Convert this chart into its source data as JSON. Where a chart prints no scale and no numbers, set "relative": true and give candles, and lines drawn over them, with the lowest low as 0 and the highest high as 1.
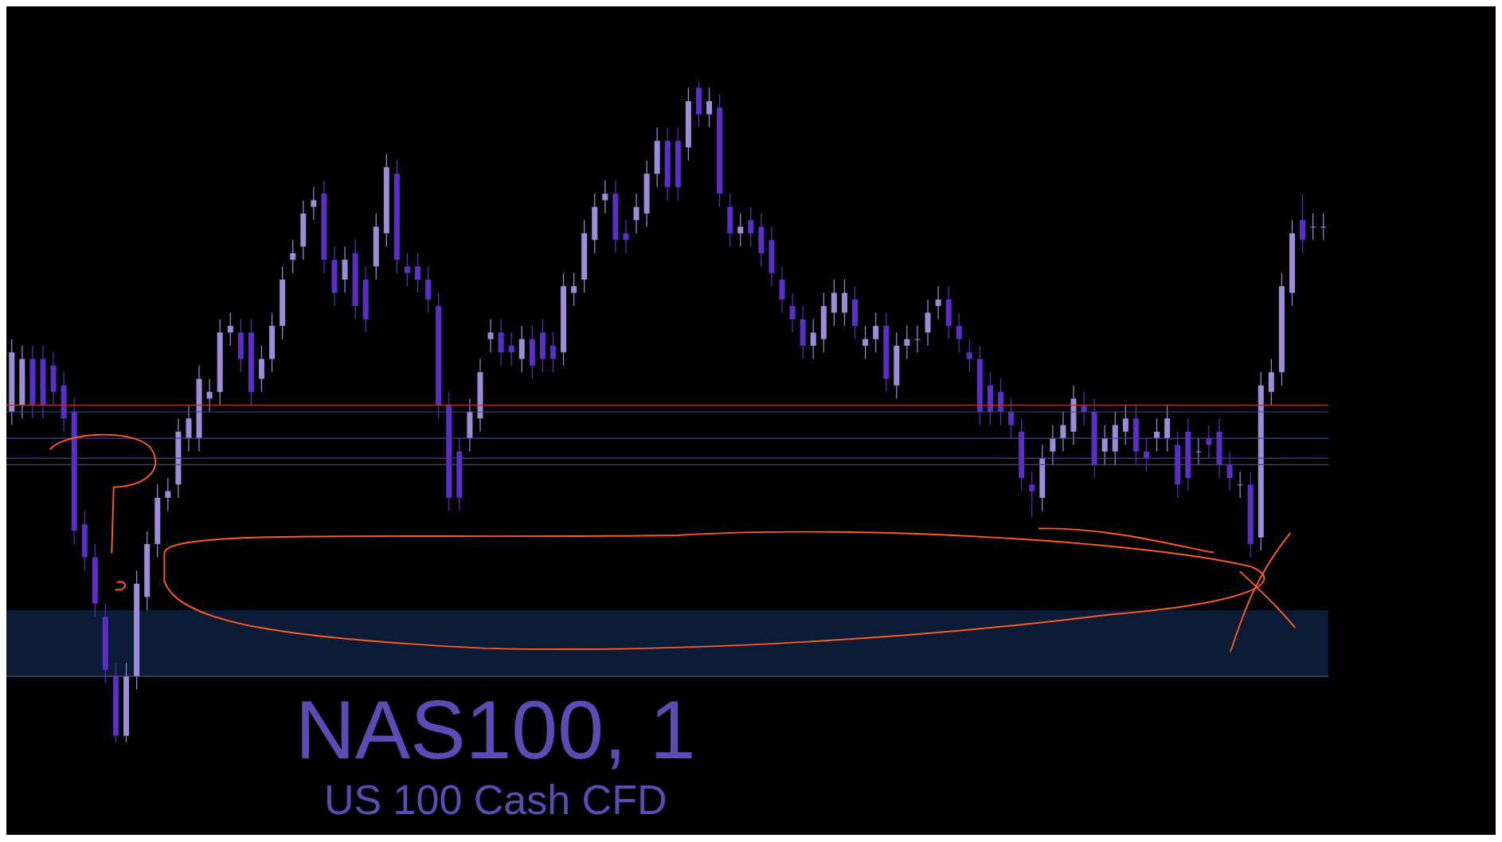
{
  "chart_data": {
    "type": "candlestick",
    "title": "NAS100, 1",
    "subtitle": "US 100 Cash CFD",
    "relative": true,
    "categories": [
      null,
      null,
      null,
      null,
      null,
      null,
      null,
      null,
      null,
      null,
      null,
      null,
      null,
      null,
      null,
      null,
      null,
      null,
      null,
      null,
      null,
      null,
      null,
      null,
      null,
      null,
      null,
      null,
      null,
      null,
      null,
      null,
      null,
      null,
      null,
      null,
      null,
      null,
      null,
      null,
      null,
      null,
      null,
      null,
      null,
      null,
      null,
      null,
      null,
      null,
      null,
      null,
      null,
      null,
      null,
      null,
      null,
      null,
      null,
      null,
      null,
      null,
      null,
      null,
      null,
      null,
      null,
      null,
      null,
      null,
      null,
      null,
      null,
      null,
      null,
      null,
      null,
      null,
      null,
      null,
      null,
      null,
      null,
      null,
      null,
      null,
      null,
      null,
      null,
      null,
      null,
      null,
      null,
      null,
      null,
      null,
      null,
      null,
      null,
      null,
      null,
      null,
      null,
      null,
      null,
      null,
      null,
      null,
      null,
      null,
      null,
      null,
      null,
      null,
      null,
      null,
      null,
      null,
      null,
      null,
      null,
      null,
      null,
      null,
      null,
      null,
      null
    ],
    "ohlc": [
      [
        0.5,
        0.61,
        0.48,
        0.59
      ],
      [
        0.51,
        0.6,
        0.49,
        0.58
      ],
      [
        0.58,
        0.6,
        0.49,
        0.51
      ],
      [
        0.58,
        0.6,
        0.49,
        0.51
      ],
      [
        0.57,
        0.59,
        0.51,
        0.53
      ],
      [
        0.54,
        0.56,
        0.47,
        0.49
      ],
      [
        0.5,
        0.52,
        0.3,
        0.32
      ],
      [
        0.33,
        0.35,
        0.26,
        0.28
      ],
      [
        0.28,
        0.3,
        0.19,
        0.21
      ],
      [
        0.19,
        0.21,
        0.09,
        0.11
      ],
      [
        0.1,
        0.12,
        0,
        0.01
      ],
      [
        0.01,
        0.12,
        0,
        0.1
      ],
      [
        0.1,
        0.26,
        0.08,
        0.24
      ],
      [
        0.22,
        0.32,
        0.2,
        0.3
      ],
      [
        0.3,
        0.39,
        0.28,
        0.37
      ],
      [
        0.37,
        0.4,
        0.35,
        0.38
      ],
      [
        0.39,
        0.49,
        0.37,
        0.47
      ],
      [
        0.46,
        0.51,
        0.44,
        0.49
      ],
      [
        0.46,
        0.57,
        0.44,
        0.55
      ],
      [
        0.52,
        0.55,
        0.5,
        0.53
      ],
      [
        0.53,
        0.64,
        0.51,
        0.62
      ],
      [
        0.62,
        0.65,
        0.6,
        0.63
      ],
      [
        0.62,
        0.64,
        0.56,
        0.58
      ],
      [
        0.62,
        0.64,
        0.51,
        0.53
      ],
      [
        0.55,
        0.6,
        0.53,
        0.58
      ],
      [
        0.58,
        0.65,
        0.56,
        0.63
      ],
      [
        0.63,
        0.72,
        0.61,
        0.7
      ],
      [
        0.73,
        0.76,
        0.71,
        0.74
      ],
      [
        0.75,
        0.82,
        0.73,
        0.8
      ],
      [
        0.81,
        0.84,
        0.79,
        0.82
      ],
      [
        0.83,
        0.85,
        0.71,
        0.73
      ],
      [
        0.73,
        0.75,
        0.66,
        0.68
      ],
      [
        0.7,
        0.75,
        0.68,
        0.73
      ],
      [
        0.74,
        0.76,
        0.64,
        0.66
      ],
      [
        0.7,
        0.72,
        0.62,
        0.64
      ],
      [
        0.72,
        0.8,
        0.7,
        0.78
      ],
      [
        0.77,
        0.89,
        0.75,
        0.87
      ],
      [
        0.86,
        0.88,
        0.71,
        0.73
      ],
      [
        0.72,
        0.74,
        0.69,
        0.71
      ],
      [
        0.72,
        0.74,
        0.68,
        0.7
      ],
      [
        0.7,
        0.72,
        0.65,
        0.67
      ],
      [
        0.66,
        0.68,
        0.49,
        0.51
      ],
      [
        0.51,
        0.53,
        0.35,
        0.37
      ],
      [
        0.44,
        0.46,
        0.35,
        0.37
      ],
      [
        0.46,
        0.52,
        0.44,
        0.5
      ],
      [
        0.49,
        0.58,
        0.47,
        0.56
      ],
      [
        0.61,
        0.64,
        0.59,
        0.62
      ],
      [
        0.62,
        0.64,
        0.57,
        0.59
      ],
      [
        0.6,
        0.62,
        0.57,
        0.59
      ],
      [
        0.58,
        0.63,
        0.56,
        0.61
      ],
      [
        0.61,
        0.63,
        0.55,
        0.57
      ],
      [
        0.62,
        0.64,
        0.56,
        0.58
      ],
      [
        0.6,
        0.62,
        0.56,
        0.58
      ],
      [
        0.59,
        0.71,
        0.57,
        0.69
      ],
      [
        0.68,
        0.71,
        0.66,
        0.69
      ],
      [
        0.7,
        0.79,
        0.68,
        0.77
      ],
      [
        0.76,
        0.83,
        0.74,
        0.81
      ],
      [
        0.82,
        0.85,
        0.8,
        0.83
      ],
      [
        0.83,
        0.85,
        0.74,
        0.76
      ],
      [
        0.77,
        0.79,
        0.74,
        0.76
      ],
      [
        0.79,
        0.83,
        0.77,
        0.81
      ],
      [
        0.8,
        0.88,
        0.78,
        0.86
      ],
      [
        0.86,
        0.93,
        0.84,
        0.91
      ],
      [
        0.91,
        0.93,
        0.82,
        0.84
      ],
      [
        0.91,
        0.93,
        0.82,
        0.84
      ],
      [
        0.9,
        0.99,
        0.88,
        0.97
      ],
      [
        0.99,
        1,
        0.93,
        0.95
      ],
      [
        0.95,
        0.99,
        0.93,
        0.97
      ],
      [
        0.96,
        0.98,
        0.81,
        0.83
      ],
      [
        0.81,
        0.83,
        0.75,
        0.77
      ],
      [
        0.77,
        0.8,
        0.75,
        0.78
      ],
      [
        0.79,
        0.81,
        0.75,
        0.77
      ],
      [
        0.78,
        0.8,
        0.72,
        0.74
      ],
      [
        0.76,
        0.78,
        0.69,
        0.71
      ],
      [
        0.7,
        0.72,
        0.65,
        0.67
      ],
      [
        0.66,
        0.68,
        0.62,
        0.64
      ],
      [
        0.64,
        0.66,
        0.58,
        0.6
      ],
      [
        0.6,
        0.64,
        0.58,
        0.62
      ],
      [
        0.61,
        0.68,
        0.59,
        0.66
      ],
      [
        0.65,
        0.7,
        0.63,
        0.68
      ],
      [
        0.65,
        0.7,
        0.63,
        0.68
      ],
      [
        0.67,
        0.69,
        0.61,
        0.63
      ],
      [
        0.6,
        0.63,
        0.58,
        0.61
      ],
      [
        0.61,
        0.65,
        0.59,
        0.63
      ],
      [
        0.63,
        0.65,
        0.53,
        0.55
      ],
      [
        0.54,
        0.62,
        0.52,
        0.6
      ],
      [
        0.6,
        0.63,
        0.58,
        0.61
      ],
      [
        0.61,
        0.63,
        0.59,
        0.61
      ],
      [
        0.62,
        0.67,
        0.6,
        0.65
      ],
      [
        0.66,
        0.69,
        0.64,
        0.67
      ],
      [
        0.67,
        0.69,
        0.61,
        0.63
      ],
      [
        0.63,
        0.65,
        0.59,
        0.61
      ],
      [
        0.59,
        0.61,
        0.56,
        0.58
      ],
      [
        0.58,
        0.6,
        0.48,
        0.5
      ],
      [
        0.54,
        0.56,
        0.48,
        0.5
      ],
      [
        0.53,
        0.55,
        0.48,
        0.5
      ],
      [
        0.5,
        0.52,
        0.46,
        0.48
      ],
      [
        0.47,
        0.49,
        0.38,
        0.4
      ],
      [
        0.39,
        0.41,
        0.34,
        0.38
      ],
      [
        0.37,
        0.45,
        0.35,
        0.43
      ],
      [
        0.44,
        0.48,
        0.42,
        0.46
      ],
      [
        0.46,
        0.5,
        0.44,
        0.48
      ],
      [
        0.47,
        0.54,
        0.45,
        0.52
      ],
      [
        0.51,
        0.53,
        0.48,
        0.5
      ],
      [
        0.5,
        0.52,
        0.4,
        0.42
      ],
      [
        0.44,
        0.48,
        0.42,
        0.46
      ],
      [
        0.44,
        0.5,
        0.42,
        0.48
      ],
      [
        0.47,
        0.51,
        0.45,
        0.49
      ],
      [
        0.49,
        0.51,
        0.42,
        0.44
      ],
      [
        0.44,
        0.46,
        0.41,
        0.43
      ],
      [
        0.46,
        0.49,
        0.44,
        0.47
      ],
      [
        0.46,
        0.51,
        0.44,
        0.49
      ],
      [
        0.45,
        0.47,
        0.37,
        0.39
      ],
      [
        0.47,
        0.49,
        0.38,
        0.4
      ],
      [
        0.44,
        0.46,
        0.42,
        0.44
      ],
      [
        0.46,
        0.48,
        0.43,
        0.45
      ],
      [
        0.47,
        0.49,
        0.4,
        0.42
      ],
      [
        0.42,
        0.44,
        0.38,
        0.4
      ],
      [
        0.39,
        0.41,
        0.37,
        0.39
      ],
      [
        0.39,
        0.41,
        0.28,
        0.3
      ],
      [
        0.31,
        0.56,
        0.29,
        0.54
      ],
      [
        0.53,
        0.58,
        0.51,
        0.56
      ],
      [
        0.56,
        0.71,
        0.54,
        0.69
      ],
      [
        0.68,
        0.79,
        0.66,
        0.77
      ],
      [
        0.79,
        0.83,
        0.74,
        0.76
      ],
      [
        0.78,
        0.8,
        0.76,
        0.78
      ],
      [
        0.78,
        0.8,
        0.76,
        0.78
      ]
    ],
    "colors": [
      "#9d8cd9",
      "#9d8cd9",
      "#5b2ec9",
      "#5b2ec9",
      "#5b2ec9",
      "#5b2ec9",
      "#5b2ec9",
      "#5b2ec9",
      "#5b2ec9",
      "#5b2ec9",
      "#5b2ec9",
      "#9d8cd9",
      "#9d8cd9",
      "#9d8cd9",
      "#9d8cd9",
      "#9d8cd9",
      "#9d8cd9",
      "#9d8cd9",
      "#9d8cd9",
      "#9d8cd9",
      "#9d8cd9",
      "#9d8cd9",
      "#5b2ec9",
      "#5b2ec9",
      "#9d8cd9",
      "#9d8cd9",
      "#9d8cd9",
      "#9d8cd9",
      "#9d8cd9",
      "#9d8cd9",
      "#5b2ec9",
      "#5b2ec9",
      "#9d8cd9",
      "#5b2ec9",
      "#5b2ec9",
      "#9d8cd9",
      "#9d8cd9",
      "#5b2ec9",
      "#5b2ec9",
      "#5b2ec9",
      "#5b2ec9",
      "#5b2ec9",
      "#5b2ec9",
      "#5b2ec9",
      "#9d8cd9",
      "#9d8cd9",
      "#9d8cd9",
      "#5b2ec9",
      "#5b2ec9",
      "#9d8cd9",
      "#5b2ec9",
      "#5b2ec9",
      "#5b2ec9",
      "#9d8cd9",
      "#9d8cd9",
      "#9d8cd9",
      "#9d8cd9",
      "#9d8cd9",
      "#5b2ec9",
      "#5b2ec9",
      "#9d8cd9",
      "#9d8cd9",
      "#9d8cd9",
      "#5b2ec9",
      "#5b2ec9",
      "#9d8cd9",
      "#5b2ec9",
      "#9d8cd9",
      "#5b2ec9",
      "#5b2ec9",
      "#9d8cd9",
      "#5b2ec9",
      "#5b2ec9",
      "#5b2ec9",
      "#5b2ec9",
      "#5b2ec9",
      "#5b2ec9",
      "#9d8cd9",
      "#9d8cd9",
      "#9d8cd9",
      "#9d8cd9",
      "#5b2ec9",
      "#9d8cd9",
      "#9d8cd9",
      "#5b2ec9",
      "#9d8cd9",
      "#9d8cd9",
      "#9d8cd9",
      "#9d8cd9",
      "#9d8cd9",
      "#5b2ec9",
      "#5b2ec9",
      "#5b2ec9",
      "#5b2ec9",
      "#5b2ec9",
      "#5b2ec9",
      "#5b2ec9",
      "#5b2ec9",
      "#5b2ec9",
      "#9d8cd9",
      "#9d8cd9",
      "#9d8cd9",
      "#9d8cd9",
      "#5b2ec9",
      "#5b2ec9",
      "#9d8cd9",
      "#9d8cd9",
      "#9d8cd9",
      "#5b2ec9",
      "#5b2ec9",
      "#9d8cd9",
      "#9d8cd9",
      "#5b2ec9",
      "#5b2ec9",
      "#9d8cd9",
      "#5b2ec9",
      "#5b2ec9",
      "#5b2ec9",
      "#9d8cd9",
      "#5b2ec9",
      "#9d8cd9",
      "#9d8cd9",
      "#9d8cd9",
      "#9d8cd9",
      "#5b2ec9",
      "#9d8cd9",
      "#9d8cd9"
    ],
    "ref_lines": [
      {
        "axis": "y",
        "value": 0.51,
        "color": "#b2323a"
      },
      {
        "axis": "y",
        "value": 0.5,
        "color": "#4a3f8f"
      },
      {
        "axis": "y",
        "value": 0.46,
        "color": "#4a3f8f"
      },
      {
        "axis": "y",
        "value": 0.43,
        "color": "#4a3f8f"
      },
      {
        "axis": "y",
        "value": 0.42,
        "color": "#4a3f8f"
      },
      {
        "axis": "y",
        "value": 0.1,
        "color": "#5a5a8a"
      }
    ],
    "bands": [
      {
        "axis": "y",
        "from": 0.1,
        "to": 0.2,
        "color": "#0b1a35"
      }
    ]
  }
}
